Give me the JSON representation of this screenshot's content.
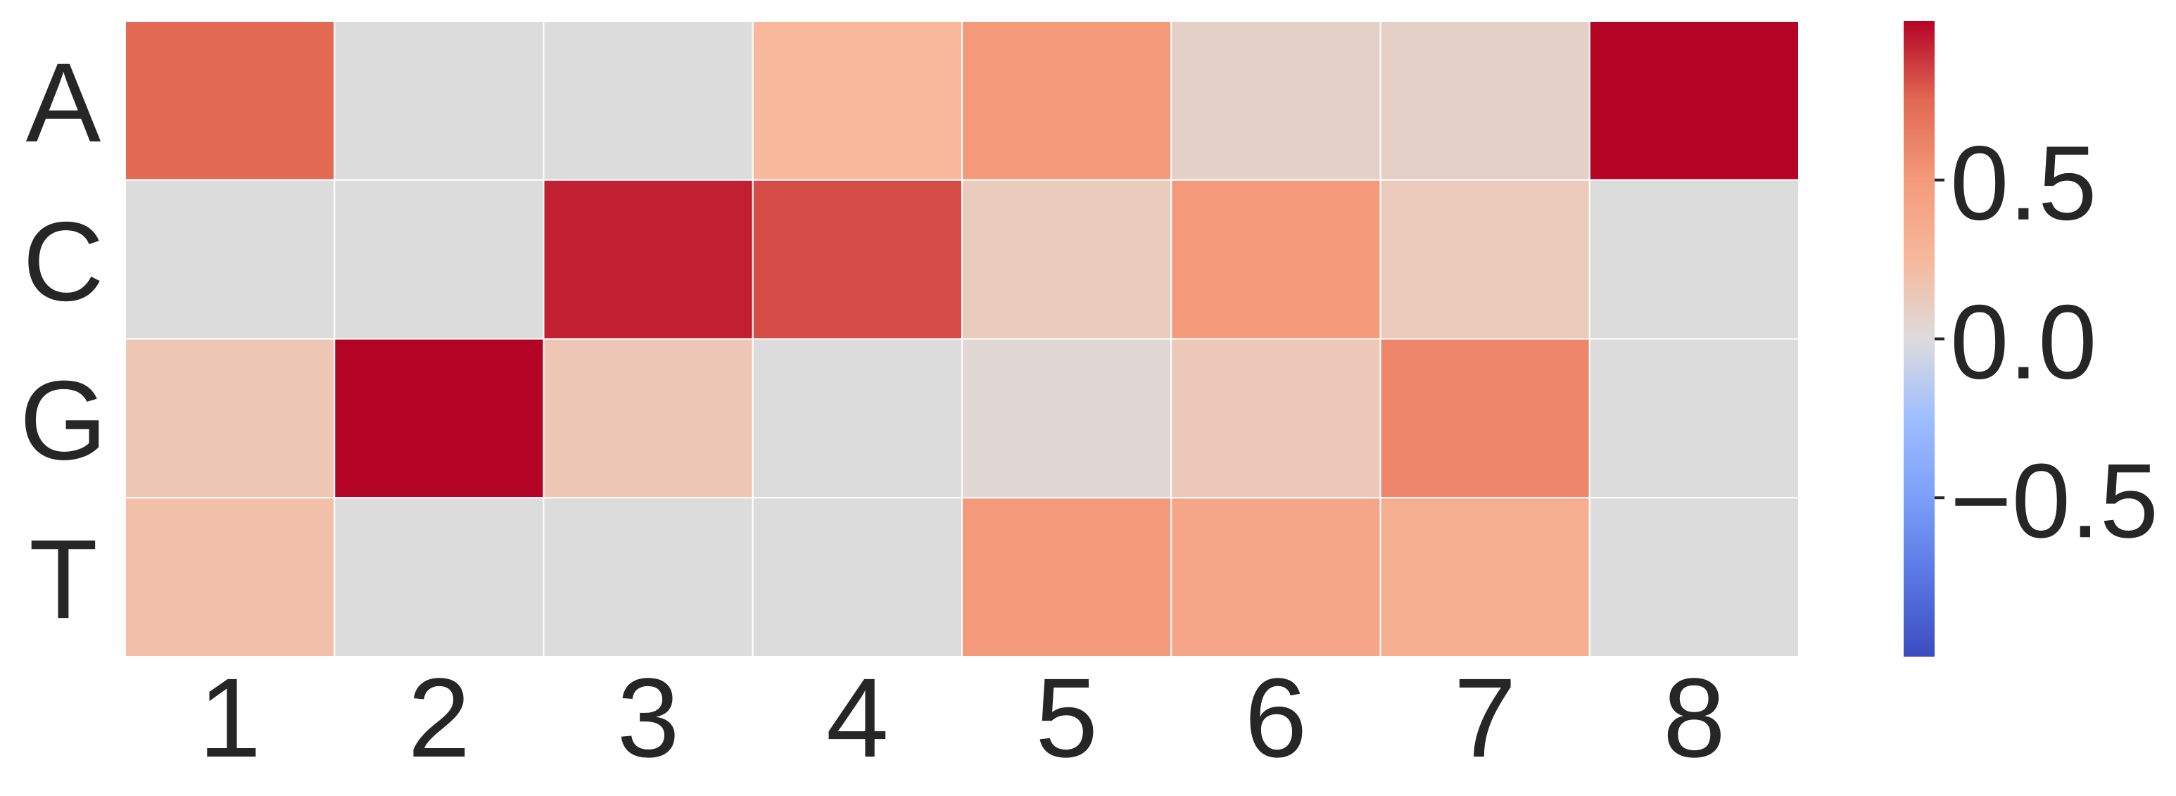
{
  "chart_data": {
    "type": "heatmap",
    "title": "",
    "xlabel": "",
    "ylabel": "",
    "x_categories": [
      "1",
      "2",
      "3",
      "4",
      "5",
      "6",
      "7",
      "8"
    ],
    "y_categories": [
      "A",
      "C",
      "G",
      "T"
    ],
    "values": [
      [
        0.75,
        0.0,
        0.0,
        0.25,
        0.5,
        0.08,
        0.08,
        1.0
      ],
      [
        0.0,
        0.0,
        0.93,
        0.82,
        0.12,
        0.5,
        0.13,
        0.0
      ],
      [
        0.15,
        1.0,
        0.15,
        0.0,
        0.03,
        0.14,
        0.6,
        0.0
      ],
      [
        0.2,
        0.0,
        0.0,
        0.0,
        0.5,
        0.4,
        0.33,
        0.0
      ]
    ],
    "vmin": -1.0,
    "vmax": 1.0,
    "colormap": "coolwarm",
    "colormap_stops": [
      "#3b4cc0",
      "#5977e3",
      "#7b9ff9",
      "#9ebeff",
      "#dddcdc",
      "#f7b89c",
      "#f49a7b",
      "#e26952",
      "#b40426"
    ],
    "colorbar": {
      "ticks": [
        0.5,
        0.0,
        -0.5
      ],
      "tick_labels": [
        "0.5",
        "0.0",
        "−0.5"
      ]
    },
    "grid_line_color": "#ffffff"
  }
}
